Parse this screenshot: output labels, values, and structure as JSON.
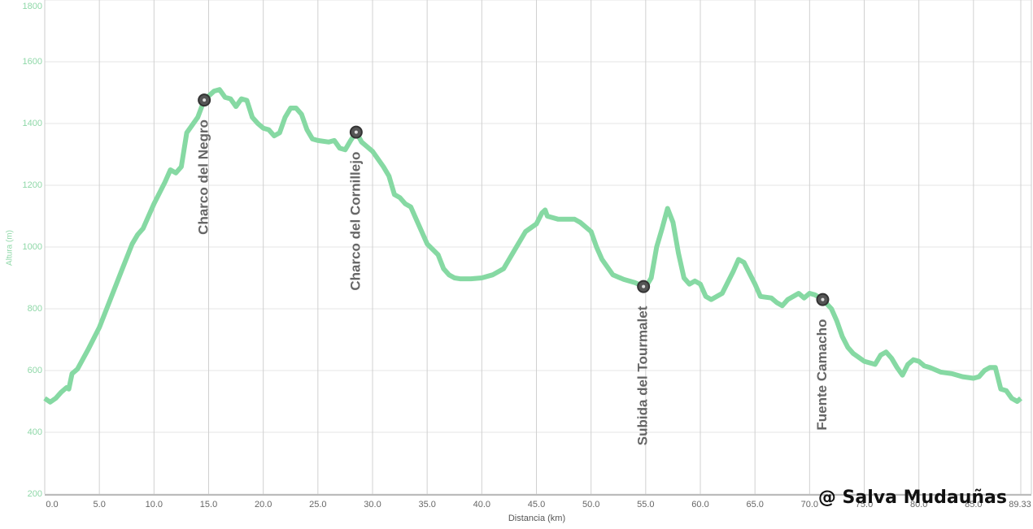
{
  "chart_data": {
    "type": "line",
    "xlabel": "Distancia (km)",
    "ylabel": "Altura (m)",
    "watermark": "@ Salva Mudauñas",
    "color": "#86d9a3",
    "grid": true,
    "xlim": [
      0,
      89.33
    ],
    "ylim": [
      200,
      1800
    ],
    "xticks": [
      {
        "value": 0,
        "label": "0.0"
      },
      {
        "value": 5,
        "label": "5.0"
      },
      {
        "value": 10,
        "label": "10.0"
      },
      {
        "value": 15,
        "label": "15.0"
      },
      {
        "value": 20,
        "label": "20.0"
      },
      {
        "value": 25,
        "label": "25.0"
      },
      {
        "value": 30,
        "label": "30.0"
      },
      {
        "value": 35,
        "label": "35.0"
      },
      {
        "value": 40,
        "label": "40.0"
      },
      {
        "value": 45,
        "label": "45.0"
      },
      {
        "value": 50,
        "label": "50.0"
      },
      {
        "value": 55,
        "label": "55.0"
      },
      {
        "value": 60,
        "label": "60.0"
      },
      {
        "value": 65,
        "label": "65.0"
      },
      {
        "value": 70,
        "label": "70.0"
      },
      {
        "value": 75,
        "label": "75.0"
      },
      {
        "value": 80,
        "label": "80.0"
      },
      {
        "value": 85,
        "label": "85.0"
      },
      89.33
    ],
    "yticks": [
      200,
      400,
      600,
      800,
      1000,
      1200,
      1400,
      1600,
      1800
    ],
    "x": [
      0,
      0.5,
      1,
      1.5,
      2,
      2.2,
      2.5,
      3,
      4,
      5,
      6,
      7,
      8,
      8.5,
      9,
      10,
      11,
      11.5,
      12,
      12.5,
      13,
      14,
      14.6,
      15.5,
      16,
      16.5,
      17,
      17.5,
      18,
      18.5,
      19,
      19.5,
      20,
      20.5,
      21,
      21.5,
      22,
      22.5,
      23,
      23.5,
      24,
      24.5,
      25,
      26,
      26.5,
      27,
      27.5,
      28,
      28.5,
      29,
      29.5,
      30,
      31,
      31.5,
      32,
      32.5,
      33,
      33.5,
      34,
      35,
      36,
      36.5,
      37,
      37.5,
      38,
      39,
      40,
      41,
      42,
      43,
      44,
      45,
      45.5,
      45.8,
      46,
      47,
      48,
      48.5,
      49,
      50,
      50.5,
      51,
      52,
      53,
      54,
      54.8,
      55,
      55.5,
      56,
      56.5,
      57,
      57.5,
      58,
      58.5,
      59,
      59.5,
      60,
      60.5,
      61,
      62,
      63,
      63.5,
      64,
      65,
      65.5,
      66.5,
      67,
      67.5,
      68,
      69,
      69.5,
      70,
      70.5,
      71.2,
      72,
      72.5,
      73,
      73.5,
      74,
      75,
      76,
      76.5,
      77,
      77.5,
      78,
      78.5,
      79,
      79.5,
      80,
      80.5,
      81,
      82,
      83,
      84,
      85,
      85.5,
      86,
      86.5,
      87,
      87.5,
      88,
      88.5,
      89,
      89.33
    ],
    "values": [
      510,
      498,
      510,
      530,
      545,
      540,
      590,
      605,
      670,
      740,
      830,
      920,
      1010,
      1040,
      1060,
      1140,
      1210,
      1250,
      1240,
      1260,
      1370,
      1420,
      1476,
      1505,
      1510,
      1485,
      1480,
      1455,
      1480,
      1475,
      1420,
      1400,
      1385,
      1380,
      1360,
      1370,
      1420,
      1450,
      1450,
      1430,
      1380,
      1350,
      1345,
      1340,
      1345,
      1320,
      1315,
      1345,
      1372,
      1340,
      1325,
      1310,
      1260,
      1230,
      1170,
      1160,
      1140,
      1130,
      1090,
      1010,
      975,
      930,
      910,
      900,
      897,
      897,
      900,
      910,
      930,
      990,
      1050,
      1075,
      1110,
      1120,
      1100,
      1090,
      1090,
      1090,
      1080,
      1050,
      1000,
      960,
      910,
      895,
      885,
      872,
      870,
      900,
      1000,
      1060,
      1125,
      1080,
      980,
      900,
      880,
      890,
      880,
      840,
      830,
      850,
      920,
      960,
      950,
      880,
      840,
      835,
      820,
      810,
      830,
      850,
      835,
      850,
      845,
      830,
      800,
      760,
      710,
      675,
      655,
      630,
      620,
      650,
      660,
      640,
      610,
      585,
      620,
      635,
      630,
      615,
      610,
      595,
      590,
      580,
      575,
      580,
      600,
      610,
      610,
      540,
      535,
      510,
      500,
      510
    ],
    "waypoints": [
      {
        "label": "Charco del Negro",
        "x": 14.6,
        "y": 1476
      },
      {
        "label": "Charco del Cornillejo",
        "x": 28.5,
        "y": 1372
      },
      {
        "label": "Subida del Tourmalet",
        "x": 54.8,
        "y": 872
      },
      {
        "label": "Fuente Camacho",
        "x": 71.2,
        "y": 830
      }
    ]
  }
}
